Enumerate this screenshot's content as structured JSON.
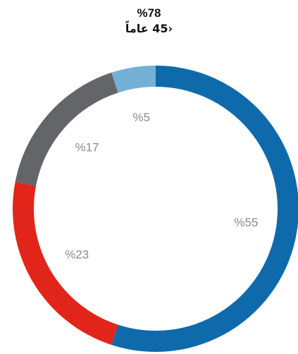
{
  "chart_data": {
    "type": "pie",
    "title": "%78",
    "subtitle": "‹45 عاماً",
    "slices": [
      {
        "label": "%55",
        "value": 55,
        "color": "#0f6aab"
      },
      {
        "label": "%23",
        "value": 23,
        "color": "#e1251b"
      },
      {
        "label": "%17",
        "value": 17,
        "color": "#646569"
      },
      {
        "label": "%5",
        "value": 5,
        "color": "#74b0d6"
      }
    ],
    "hole": true,
    "start": "top",
    "direction": "clockwise"
  }
}
